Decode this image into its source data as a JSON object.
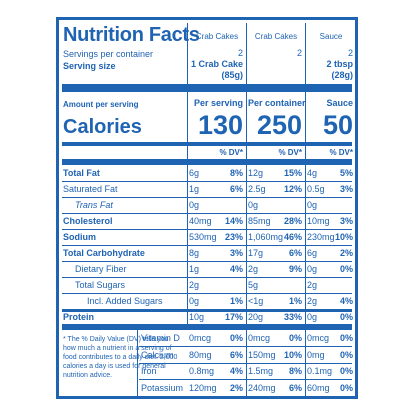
{
  "title": "Nutrition Facts",
  "servings_per_container_label": "Servings per container",
  "serving_size_label": "Serving size",
  "columns": [
    {
      "name": "Crab Cakes",
      "servings": "2",
      "serving_size": "1 Crab Cake",
      "serving_weight": "(85g)",
      "amount_header": "Per serving",
      "calories": "130"
    },
    {
      "name": "Crab Cakes",
      "servings": "2",
      "serving_size": "",
      "serving_weight": "",
      "amount_header": "Per container",
      "calories": "250"
    },
    {
      "name": "Sauce",
      "servings": "2",
      "serving_size": "2 tbsp",
      "serving_weight": "(28g)",
      "amount_header": "Sauce",
      "calories": "50"
    }
  ],
  "amount_per_serving_label": "Amount per serving",
  "calories_label": "Calories",
  "dv_header": "% DV*",
  "nutrients": [
    {
      "label": "Total Fat",
      "cols": [
        [
          "6g",
          "8%"
        ],
        [
          "12g",
          "15%"
        ],
        [
          "4g",
          "5%"
        ]
      ]
    },
    {
      "label": "Saturated Fat",
      "cols": [
        [
          "1g",
          "6%"
        ],
        [
          "2.5g",
          "12%"
        ],
        [
          "0.5g",
          "3%"
        ]
      ]
    },
    {
      "label": "Trans Fat",
      "cols": [
        [
          "0g",
          ""
        ],
        [
          "0g",
          ""
        ],
        [
          "0g",
          ""
        ]
      ]
    },
    {
      "label": "Cholesterol",
      "cols": [
        [
          "40mg",
          "14%"
        ],
        [
          "85mg",
          "28%"
        ],
        [
          "10mg",
          "3%"
        ]
      ]
    },
    {
      "label": "Sodium",
      "cols": [
        [
          "530mg",
          "23%"
        ],
        [
          "1,060mg",
          "46%"
        ],
        [
          "230mg",
          "10%"
        ]
      ]
    },
    {
      "label": "Total Carbohydrate",
      "cols": [
        [
          "8g",
          "3%"
        ],
        [
          "17g",
          "6%"
        ],
        [
          "6g",
          "2%"
        ]
      ]
    },
    {
      "label": "Dietary Fiber",
      "cols": [
        [
          "1g",
          "4%"
        ],
        [
          "2g",
          "9%"
        ],
        [
          "0g",
          "0%"
        ]
      ]
    },
    {
      "label": "Total Sugars",
      "cols": [
        [
          "2g",
          ""
        ],
        [
          "5g",
          ""
        ],
        [
          "2g",
          ""
        ]
      ]
    },
    {
      "label": "Incl. Added Sugars",
      "cols": [
        [
          "0g",
          "1%"
        ],
        [
          "<1g",
          "1%"
        ],
        [
          "2g",
          "4%"
        ]
      ]
    },
    {
      "label": "Protein",
      "cols": [
        [
          "10g",
          "17%"
        ],
        [
          "20g",
          "33%"
        ],
        [
          "0g",
          "0%"
        ]
      ]
    }
  ],
  "footnote": "* The % Daily Value (DV) tells you how much a nutrient in a serving of food contributes to a daily diet. 2,000 calories a day is used for general nutrition advice.",
  "vitamins": [
    {
      "label": "Vitamin D",
      "cols": [
        [
          "0mcg",
          "0%"
        ],
        [
          "0mcg",
          "0%"
        ],
        [
          "0mcg",
          "0%"
        ]
      ]
    },
    {
      "label": "Calcium",
      "cols": [
        [
          "80mg",
          "6%"
        ],
        [
          "150mg",
          "10%"
        ],
        [
          "0mg",
          "0%"
        ]
      ]
    },
    {
      "label": "Iron",
      "cols": [
        [
          "0.8mg",
          "4%"
        ],
        [
          "1.5mg",
          "8%"
        ],
        [
          "0.1mg",
          "0%"
        ]
      ]
    },
    {
      "label": "Potassium",
      "cols": [
        [
          "120mg",
          "2%"
        ],
        [
          "240mg",
          "6%"
        ],
        [
          "60mg",
          "0%"
        ]
      ]
    }
  ],
  "colors": {
    "label_blue": "#1f63b3",
    "background": "#ffffff"
  }
}
